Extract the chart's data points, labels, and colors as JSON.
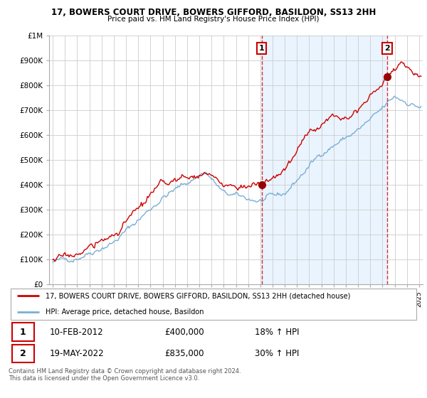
{
  "title": "17, BOWERS COURT DRIVE, BOWERS GIFFORD, BASILDON, SS13 2HH",
  "subtitle": "Price paid vs. HM Land Registry's House Price Index (HPI)",
  "ylim": [
    0,
    1000000
  ],
  "yticks": [
    0,
    100000,
    200000,
    300000,
    400000,
    500000,
    600000,
    700000,
    800000,
    900000,
    1000000
  ],
  "ytick_labels": [
    "£0",
    "£100K",
    "£200K",
    "£300K",
    "£400K",
    "£500K",
    "£600K",
    "£700K",
    "£800K",
    "£900K",
    "£1M"
  ],
  "xlim_start": 1994.7,
  "xlim_end": 2025.3,
  "sale1_x": 2012.1,
  "sale1_y": 400000,
  "sale2_x": 2022.38,
  "sale2_y": 835000,
  "red_line_color": "#cc0000",
  "blue_line_color": "#7aafd4",
  "sale_marker_color": "#990000",
  "vline_color": "#cc0000",
  "shade_color": "#ddeeff",
  "grid_color": "#cccccc",
  "bg_color": "#ffffff",
  "legend_line1": "17, BOWERS COURT DRIVE, BOWERS GIFFORD, BASILDON, SS13 2HH (detached house)",
  "legend_line2": "HPI: Average price, detached house, Basildon",
  "note1_date": "10-FEB-2012",
  "note1_price": "£400,000",
  "note1_hpi": "18% ↑ HPI",
  "note2_date": "19-MAY-2022",
  "note2_price": "£835,000",
  "note2_hpi": "30% ↑ HPI",
  "footer": "Contains HM Land Registry data © Crown copyright and database right 2024.\nThis data is licensed under the Open Government Licence v3.0."
}
